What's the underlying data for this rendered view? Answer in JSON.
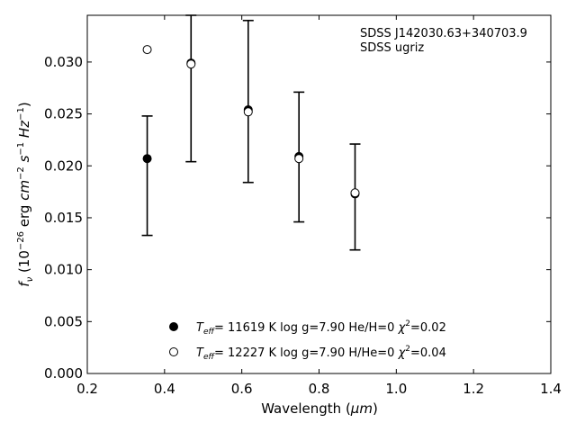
{
  "chart_data": {
    "type": "scatter",
    "title": "",
    "xlabel_main": "Wavelength (",
    "xlabel_unit": "μm",
    "xlabel_tail": ")",
    "ylabel": "f_ν (10^−26 erg cm^−2 s^−1 Hz^−1)",
    "xlim": [
      0.2,
      1.4
    ],
    "ylim": [
      0.0,
      0.0345
    ],
    "x_ticks": [
      "0.2",
      "0.4",
      "0.6",
      "0.8",
      "1.0",
      "1.2",
      "1.4"
    ],
    "x_tick_values": [
      0.2,
      0.4,
      0.6,
      0.8,
      1.0,
      1.2,
      1.4
    ],
    "y_ticks": [
      "0.000",
      "0.005",
      "0.010",
      "0.015",
      "0.020",
      "0.025",
      "0.030"
    ],
    "y_tick_values": [
      0.0,
      0.005,
      0.01,
      0.015,
      0.02,
      0.025,
      0.03
    ],
    "grid": false,
    "annotation": {
      "line1": "SDSS J142030.63+340703.9",
      "line2": "SDSS ugriz"
    },
    "observed": {
      "x": [
        0.3551,
        0.4686,
        0.6166,
        0.748,
        0.8932
      ],
      "y": [
        0.0207,
        0.0298,
        0.0253,
        0.0209,
        0.0173
      ],
      "err_low": [
        0.0133,
        0.0204,
        0.0184,
        0.0146,
        0.0119
      ],
      "err_high": [
        0.0248,
        0.0345,
        0.034,
        0.0271,
        0.0221
      ]
    },
    "series": [
      {
        "marker": "filled-circle",
        "x": [
          0.3551,
          0.4686,
          0.6166,
          0.748,
          0.8932
        ],
        "y": [
          0.0207,
          0.0299,
          0.0254,
          0.0209,
          0.0173
        ],
        "legend": {
          "teff_value": "= 11619 K  log g=7.90  He/H=0  ",
          "chi2_value": "=0.02"
        }
      },
      {
        "marker": "open-circle",
        "x": [
          0.3551,
          0.4686,
          0.6166,
          0.748,
          0.8932
        ],
        "y": [
          0.0312,
          0.0298,
          0.0252,
          0.0207,
          0.0174
        ],
        "legend": {
          "teff_value": "= 12227 K  log g=7.90  H/He=0  ",
          "chi2_value": "=0.04"
        }
      }
    ]
  }
}
